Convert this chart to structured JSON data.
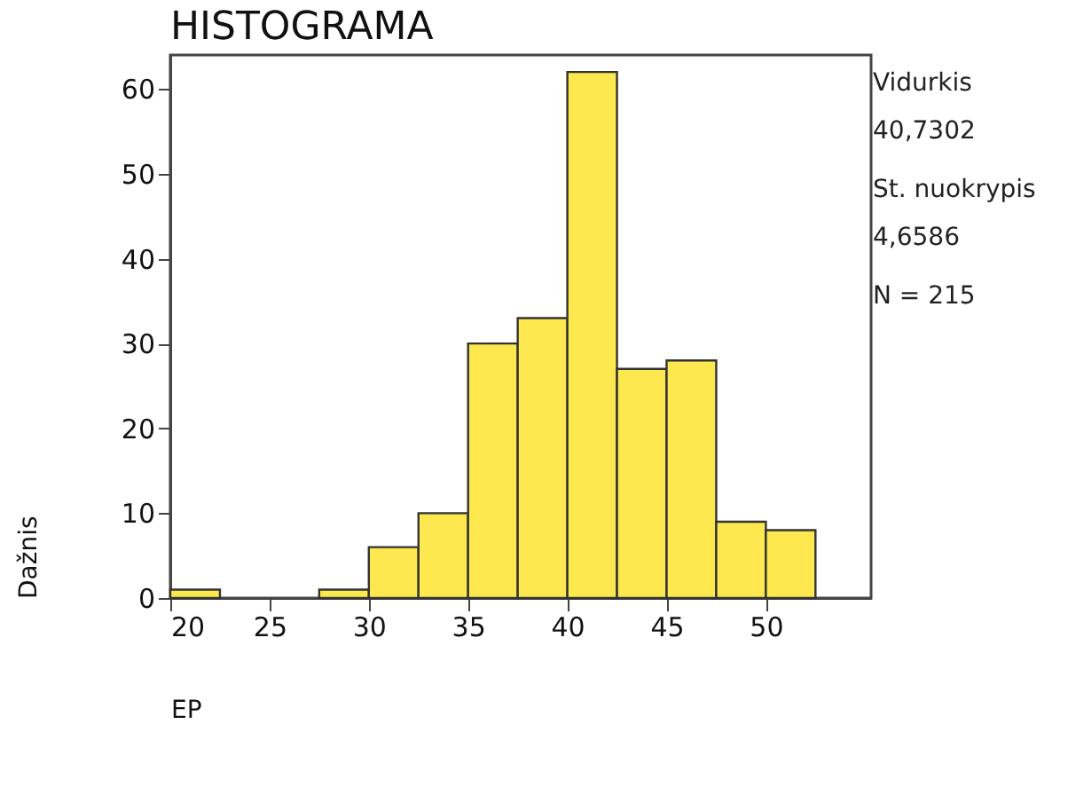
{
  "chart_data": {
    "type": "histogram",
    "title": "HISTOGRAMA",
    "xlabel": "EP",
    "ylabel": "Dažnis",
    "annotations": [
      "Vidurkis",
      "40,7302",
      "St. nuokrypis",
      "4,6586",
      "N = 215"
    ],
    "bins": [
      20,
      22.5,
      25,
      27.5,
      30,
      32.5,
      35,
      37.5,
      40,
      42.5,
      45,
      47.5,
      50,
      52.5
    ],
    "values": [
      1,
      0,
      0,
      1,
      6,
      10,
      30,
      33,
      62,
      27,
      28,
      9,
      8
    ],
    "color": "#fde84f",
    "xlim": [
      20,
      55.3
    ],
    "xticks": [
      20,
      25,
      30,
      35,
      40,
      45,
      50
    ],
    "ylim": [
      0,
      64
    ],
    "yticks": [
      0,
      10,
      20,
      30,
      40,
      50,
      60
    ]
  }
}
